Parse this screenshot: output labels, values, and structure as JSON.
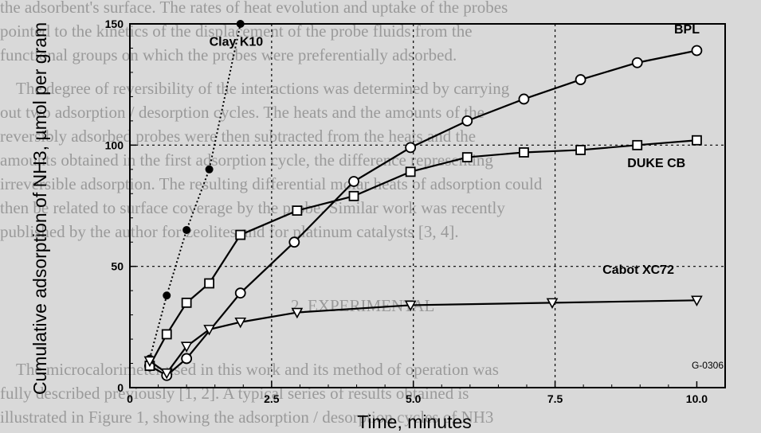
{
  "background_text": {
    "lines": [
      "the adsorbent's surface. The rates of heat evolution and uptake of the probes",
      "pointed to the kinetics of the displacement of the probe fluids from the",
      "functional groups on which the probes were preferentially adsorbed.",
      "The degree of reversibility of the interactions was determined by carrying",
      "out two adsorption / desorption cycles. The heats and the amounts of the",
      "reversibly adsorbed probes were then subtracted from the heats and the",
      "amounts obtained in the first adsorption cycle, the difference representing",
      "irreversible adsorption. The resulting differential molar heats of adsorption could",
      "then be related to surface coverage by the probe. Similar work was recently",
      "published by the author for zeolites and for platinum catalysts [3, 4].",
      "2. EXPERIMENTAL",
      "The microcalorimeter used in this work and its method of operation was",
      "fully described previously [1, 2]. A typical series of results obtained is",
      "illustrated in Figure 1, showing the adsorption / desorption cycles of NH3"
    ]
  },
  "chart_data": {
    "type": "line",
    "xlabel": "Time, minutes",
    "ylabel": "Cumulative adsorption of NH3, µmol per gram",
    "xlim": [
      0,
      10.5
    ],
    "ylim": [
      0,
      150
    ],
    "x_ticks": [
      "0",
      "2.5",
      "5.0",
      "7.5",
      "10.0"
    ],
    "x_tick_values": [
      0,
      2.5,
      5.0,
      7.5,
      10.0
    ],
    "y_ticks": [
      "0",
      "50",
      "100",
      "150"
    ],
    "y_tick_values": [
      0,
      50,
      100,
      150
    ],
    "grid": "dotted at 2.5, 5.0, 7.5 (x) and 50, 100 (y)",
    "annotation": "G-0306",
    "series": [
      {
        "name": "Clay K10",
        "marker": "filled-circle",
        "style": "dotted",
        "x": [
          0.35,
          0.65,
          1.0,
          1.4,
          1.95
        ],
        "y": [
          12,
          38,
          65,
          90,
          150
        ]
      },
      {
        "name": "BPL",
        "marker": "open-circle",
        "style": "solid",
        "x": [
          0.35,
          0.65,
          1.0,
          1.95,
          2.9,
          3.95,
          4.95,
          5.95,
          6.95,
          7.95,
          8.95,
          10.0
        ],
        "y": [
          9,
          5,
          12,
          39,
          60,
          85,
          99,
          110,
          119,
          127,
          134,
          139
        ]
      },
      {
        "name": "DUKE CB",
        "marker": "open-square",
        "style": "solid",
        "x": [
          0.35,
          0.65,
          1.0,
          1.4,
          1.95,
          2.95,
          3.95,
          4.95,
          5.95,
          6.95,
          7.95,
          8.95,
          10.0
        ],
        "y": [
          9,
          22,
          35,
          43,
          63,
          73,
          79,
          89,
          95,
          97,
          98,
          100,
          102
        ]
      },
      {
        "name": "Cabot XC72",
        "marker": "open-triangle-down",
        "style": "solid",
        "x": [
          0.35,
          0.65,
          1.0,
          1.4,
          1.95,
          2.95,
          4.95,
          7.45,
          10.0
        ],
        "y": [
          11,
          6,
          17,
          24,
          27,
          31,
          34,
          35,
          36
        ]
      }
    ],
    "series_labels": [
      "Clay K10",
      "BPL",
      "DUKE CB",
      "Cabot XC72"
    ]
  }
}
